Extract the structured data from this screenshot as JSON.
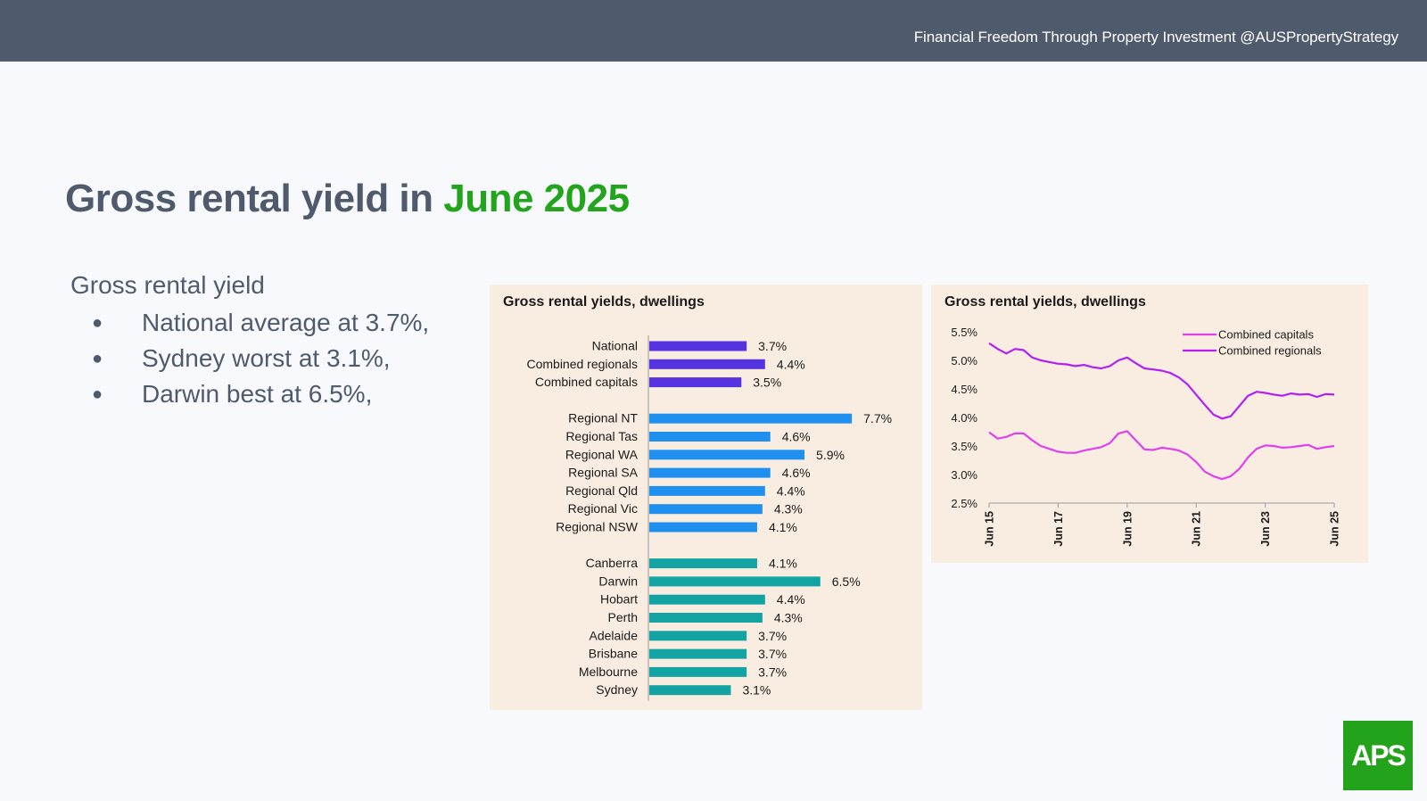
{
  "header": {
    "tagline": "Financial Freedom Through Property Investment @AUSPropertyStrategy"
  },
  "title": {
    "main": "Gross rental yield in",
    "highlight": "June 2025"
  },
  "summary": {
    "heading": "Gross rental yield",
    "bullets": [
      "National average at 3.7%,",
      "Sydney worst at 3.1%,",
      "Darwin best at 6.5%,"
    ]
  },
  "colors": {
    "accent_green": "#22a51c",
    "header_bg": "#4f5b6d",
    "panel_bg": "#f9ede1",
    "national_group": "#5533e0",
    "regional_group": "#1f8ff0",
    "capital_group": "#14a3a3",
    "combined_capitals_line": "#e040e8",
    "combined_regionals_line": "#b020f0"
  },
  "logo": {
    "text": "APS"
  },
  "chart_data": [
    {
      "type": "bar",
      "orientation": "horizontal",
      "title": "Gross rental yields, dwellings",
      "groups": [
        {
          "color": "#5533e0",
          "items": [
            {
              "label": "National",
              "value": 3.7,
              "text": "3.7%"
            },
            {
              "label": "Combined regionals",
              "value": 4.4,
              "text": "4.4%"
            },
            {
              "label": "Combined capitals",
              "value": 3.5,
              "text": "3.5%"
            }
          ]
        },
        {
          "color": "#1f8ff0",
          "items": [
            {
              "label": "Regional NT",
              "value": 7.7,
              "text": "7.7%"
            },
            {
              "label": "Regional Tas",
              "value": 4.6,
              "text": "4.6%"
            },
            {
              "label": "Regional WA",
              "value": 5.9,
              "text": "5.9%"
            },
            {
              "label": "Regional SA",
              "value": 4.6,
              "text": "4.6%"
            },
            {
              "label": "Regional Qld",
              "value": 4.4,
              "text": "4.4%"
            },
            {
              "label": "Regional Vic",
              "value": 4.3,
              "text": "4.3%"
            },
            {
              "label": "Regional NSW",
              "value": 4.1,
              "text": "4.1%"
            }
          ]
        },
        {
          "color": "#14a3a3",
          "items": [
            {
              "label": "Canberra",
              "value": 4.1,
              "text": "4.1%"
            },
            {
              "label": "Darwin",
              "value": 6.5,
              "text": "6.5%"
            },
            {
              "label": "Hobart",
              "value": 4.4,
              "text": "4.4%"
            },
            {
              "label": "Perth",
              "value": 4.3,
              "text": "4.3%"
            },
            {
              "label": "Adelaide",
              "value": 3.7,
              "text": "3.7%"
            },
            {
              "label": "Brisbane",
              "value": 3.7,
              "text": "3.7%"
            },
            {
              "label": "Melbourne",
              "value": 3.7,
              "text": "3.7%"
            },
            {
              "label": "Sydney",
              "value": 3.1,
              "text": "3.1%"
            }
          ]
        }
      ],
      "xlim": [
        0,
        8
      ]
    },
    {
      "type": "line",
      "title": "Gross rental yields, dwellings",
      "x_ticks": [
        "Jun 15",
        "Jun 17",
        "Jun 19",
        "Jun 21",
        "Jun 23",
        "Jun 25"
      ],
      "x_range": [
        2015.5,
        2025.5
      ],
      "y_ticks": [
        "2.5%",
        "3.0%",
        "3.5%",
        "4.0%",
        "4.5%",
        "5.0%",
        "5.5%"
      ],
      "ylim": [
        2.5,
        5.5
      ],
      "legend_position": "top-right",
      "series": [
        {
          "name": "Combined capitals",
          "color": "#e040e8",
          "points": [
            [
              2015.5,
              3.74
            ],
            [
              2015.75,
              3.63
            ],
            [
              2016.0,
              3.66
            ],
            [
              2016.25,
              3.72
            ],
            [
              2016.5,
              3.72
            ],
            [
              2016.75,
              3.6
            ],
            [
              2017.0,
              3.5
            ],
            [
              2017.25,
              3.45
            ],
            [
              2017.5,
              3.4
            ],
            [
              2017.75,
              3.38
            ],
            [
              2018.0,
              3.38
            ],
            [
              2018.25,
              3.42
            ],
            [
              2018.5,
              3.45
            ],
            [
              2018.75,
              3.48
            ],
            [
              2019.0,
              3.55
            ],
            [
              2019.25,
              3.72
            ],
            [
              2019.5,
              3.76
            ],
            [
              2019.75,
              3.6
            ],
            [
              2020.0,
              3.44
            ],
            [
              2020.25,
              3.43
            ],
            [
              2020.5,
              3.47
            ],
            [
              2020.75,
              3.45
            ],
            [
              2021.0,
              3.42
            ],
            [
              2021.25,
              3.35
            ],
            [
              2021.5,
              3.22
            ],
            [
              2021.75,
              3.05
            ],
            [
              2022.0,
              2.97
            ],
            [
              2022.25,
              2.92
            ],
            [
              2022.5,
              2.97
            ],
            [
              2022.75,
              3.1
            ],
            [
              2023.0,
              3.3
            ],
            [
              2023.25,
              3.45
            ],
            [
              2023.5,
              3.51
            ],
            [
              2023.75,
              3.5
            ],
            [
              2024.0,
              3.47
            ],
            [
              2024.25,
              3.48
            ],
            [
              2024.5,
              3.5
            ],
            [
              2024.75,
              3.52
            ],
            [
              2025.0,
              3.45
            ],
            [
              2025.25,
              3.48
            ],
            [
              2025.5,
              3.5
            ]
          ]
        },
        {
          "name": "Combined regionals",
          "color": "#b020f0",
          "points": [
            [
              2015.5,
              5.3
            ],
            [
              2015.75,
              5.2
            ],
            [
              2016.0,
              5.12
            ],
            [
              2016.25,
              5.2
            ],
            [
              2016.5,
              5.18
            ],
            [
              2016.75,
              5.05
            ],
            [
              2017.0,
              5.0
            ],
            [
              2017.25,
              4.97
            ],
            [
              2017.5,
              4.94
            ],
            [
              2017.75,
              4.93
            ],
            [
              2018.0,
              4.9
            ],
            [
              2018.25,
              4.92
            ],
            [
              2018.5,
              4.88
            ],
            [
              2018.75,
              4.86
            ],
            [
              2019.0,
              4.9
            ],
            [
              2019.25,
              5.0
            ],
            [
              2019.5,
              5.05
            ],
            [
              2019.75,
              4.95
            ],
            [
              2020.0,
              4.86
            ],
            [
              2020.25,
              4.84
            ],
            [
              2020.5,
              4.82
            ],
            [
              2020.75,
              4.78
            ],
            [
              2021.0,
              4.7
            ],
            [
              2021.25,
              4.58
            ],
            [
              2021.5,
              4.4
            ],
            [
              2021.75,
              4.22
            ],
            [
              2022.0,
              4.05
            ],
            [
              2022.25,
              3.98
            ],
            [
              2022.5,
              4.02
            ],
            [
              2022.75,
              4.2
            ],
            [
              2023.0,
              4.38
            ],
            [
              2023.25,
              4.45
            ],
            [
              2023.5,
              4.43
            ],
            [
              2023.75,
              4.4
            ],
            [
              2024.0,
              4.38
            ],
            [
              2024.25,
              4.42
            ],
            [
              2024.5,
              4.4
            ],
            [
              2024.75,
              4.41
            ],
            [
              2025.0,
              4.36
            ],
            [
              2025.25,
              4.41
            ],
            [
              2025.5,
              4.4
            ]
          ]
        }
      ]
    }
  ]
}
